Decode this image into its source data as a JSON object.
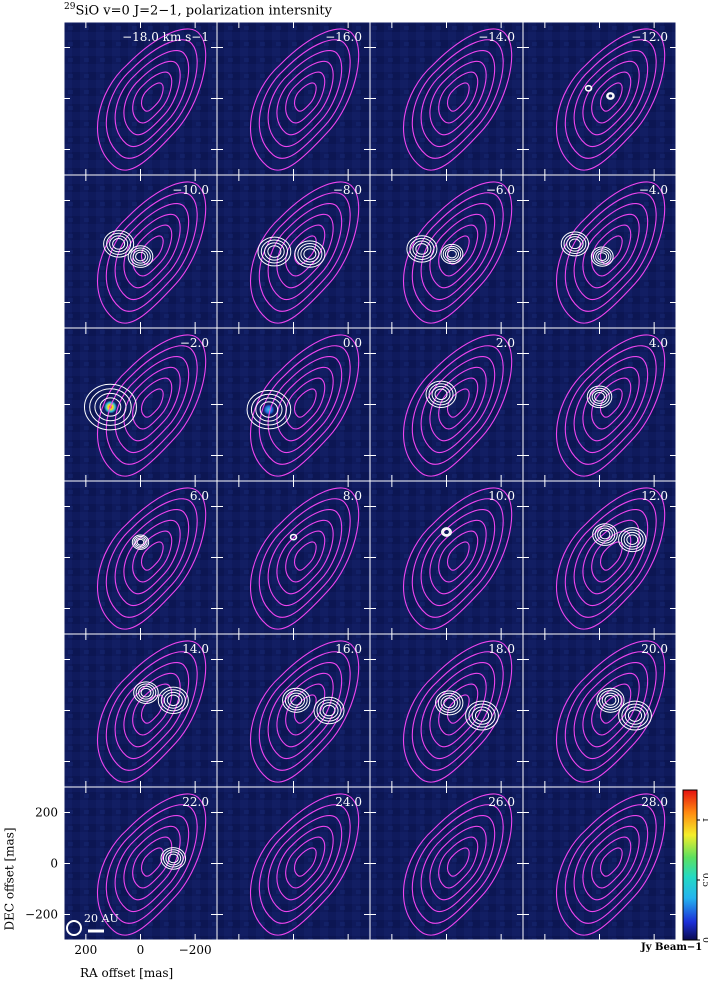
{
  "title": {
    "isotope": "29",
    "text": "SiO v=0 J=2−1, polarization intersnity"
  },
  "chart_data": {
    "type": "heatmap",
    "layout": "channel-map grid, 4 columns x 6 rows",
    "velocity_unit": "km s−1",
    "channels": [
      {
        "label": "−18.0 km s−1",
        "velocity": -18.0,
        "pol_blobs": []
      },
      {
        "label": "−16.0",
        "velocity": -16.0,
        "pol_blobs": []
      },
      {
        "label": "−14.0",
        "velocity": -14.0,
        "pol_blobs": []
      },
      {
        "label": "−12.0",
        "velocity": -12.0,
        "pol_blobs": [
          [
            40,
            40,
            12
          ],
          [
            -40,
            10,
            14
          ]
        ]
      },
      {
        "label": "−10.0",
        "velocity": -10.0,
        "pol_blobs": [
          [
            80,
            30,
            55
          ],
          [
            0,
            -20,
            45
          ]
        ]
      },
      {
        "label": "−8.0",
        "velocity": -8.0,
        "pol_blobs": [
          [
            70,
            0,
            60
          ],
          [
            -60,
            -10,
            55
          ]
        ]
      },
      {
        "label": "−6.0",
        "velocity": -6.0,
        "pol_blobs": [
          [
            90,
            10,
            55
          ],
          [
            -20,
            -10,
            40
          ]
        ]
      },
      {
        "label": "−4.0",
        "velocity": -4.0,
        "pol_blobs": [
          [
            90,
            30,
            50
          ],
          [
            -10,
            -20,
            40
          ]
        ]
      },
      {
        "label": "−2.0",
        "velocity": -2.0,
        "pol_blobs": [
          [
            110,
            -10,
            95
          ]
        ],
        "peak": 1.1
      },
      {
        "label": "0.0",
        "velocity": 0.0,
        "pol_blobs": [
          [
            90,
            -20,
            80
          ]
        ],
        "peak": 0.3
      },
      {
        "label": "2.0",
        "velocity": 2.0,
        "pol_blobs": [
          [
            20,
            40,
            55
          ]
        ]
      },
      {
        "label": "4.0",
        "velocity": 4.0,
        "pol_blobs": [
          [
            0,
            30,
            45
          ]
        ]
      },
      {
        "label": "6.0",
        "velocity": 6.0,
        "pol_blobs": [
          [
            0,
            60,
            30
          ]
        ]
      },
      {
        "label": "8.0",
        "velocity": 8.0,
        "pol_blobs": [
          [
            0,
            80,
            12
          ]
        ]
      },
      {
        "label": "10.0",
        "velocity": 10.0,
        "pol_blobs": [
          [
            0,
            100,
            18
          ]
        ]
      },
      {
        "label": "12.0",
        "velocity": 12.0,
        "pol_blobs": [
          [
            -120,
            70,
            50
          ],
          [
            -20,
            90,
            45
          ]
        ]
      },
      {
        "label": "14.0",
        "velocity": 14.0,
        "pol_blobs": [
          [
            -120,
            40,
            55
          ],
          [
            -20,
            70,
            45
          ]
        ]
      },
      {
        "label": "16.0",
        "velocity": 16.0,
        "pol_blobs": [
          [
            -130,
            0,
            55
          ],
          [
            -10,
            40,
            50
          ]
        ]
      },
      {
        "label": "18.0",
        "velocity": 18.0,
        "pol_blobs": [
          [
            -130,
            -20,
            60
          ],
          [
            -10,
            30,
            50
          ]
        ]
      },
      {
        "label": "20.0",
        "velocity": 20.0,
        "pol_blobs": [
          [
            -130,
            -20,
            60
          ],
          [
            -40,
            40,
            50
          ]
        ]
      },
      {
        "label": "22.0",
        "velocity": 22.0,
        "pol_blobs": [
          [
            -120,
            20,
            45
          ]
        ]
      },
      {
        "label": "24.0",
        "velocity": 24.0,
        "pol_blobs": []
      },
      {
        "label": "26.0",
        "velocity": 26.0,
        "pol_blobs": []
      },
      {
        "label": "28.0",
        "velocity": 28.0,
        "pol_blobs": []
      }
    ],
    "xlabel": "RA offset [mas]",
    "ylabel": "DEC offset [mas]",
    "xlim": [
      280,
      -280
    ],
    "ylim": [
      -300,
      300
    ],
    "x_ticks": [
      "200",
      "0",
      "−200"
    ],
    "y_ticks": [
      "200",
      "0",
      "−200"
    ],
    "colorbar": {
      "unit": "Jy Beam−1",
      "ticks": [
        "0",
        "0.5",
        "1"
      ],
      "range": [
        0,
        1.25
      ]
    },
    "scale_bar_label": "20 AU",
    "colors": {
      "background": "#101a5a",
      "total_intensity_contours": "#ee44ee",
      "polarization_contours": "#ffffff"
    }
  }
}
